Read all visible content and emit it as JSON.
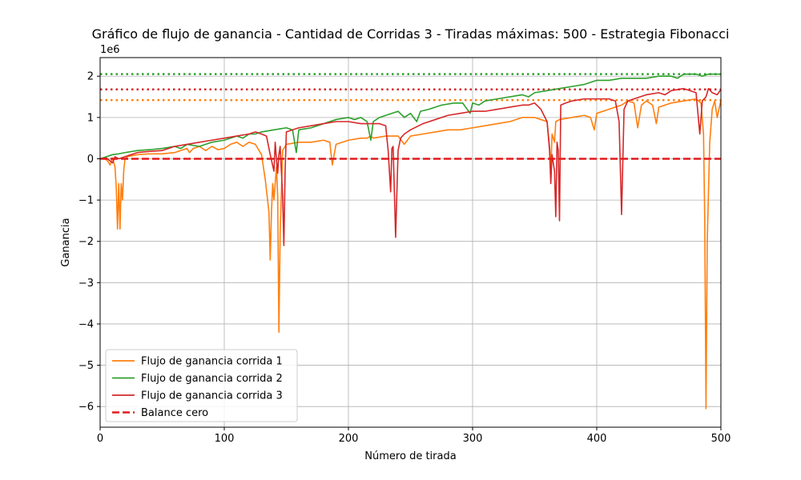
{
  "chart_data": {
    "type": "line",
    "title": "Gráfico de flujo de ganancia - Cantidad de Corridas 3 - Tiradas máximas: 500 - Estrategia Fibonacci",
    "xlabel": "Número de tirada",
    "ylabel": "Ganancia",
    "y_multiplier_label": "1e6",
    "xlim": [
      0,
      500
    ],
    "ylim": [
      -6.5,
      2.45
    ],
    "xticks": [
      0,
      100,
      200,
      300,
      400,
      500
    ],
    "xtick_labels": [
      "0",
      "100",
      "200",
      "300",
      "400",
      "500"
    ],
    "yticks": [
      -6,
      -5,
      -4,
      -3,
      -2,
      -1,
      0,
      1,
      2
    ],
    "ytick_labels": [
      "−6",
      "−5",
      "−4",
      "−3",
      "−2",
      "−1",
      "0",
      "1",
      "2"
    ],
    "grid": true,
    "legend_position": "lower-left",
    "series": [
      {
        "name": "Flujo de ganancia corrida 1",
        "color": "#ff7f0e",
        "points": [
          [
            0,
            0
          ],
          [
            3,
            0.02
          ],
          [
            6,
            -0.05
          ],
          [
            8,
            -0.15
          ],
          [
            10,
            0.02
          ],
          [
            12,
            -0.2
          ],
          [
            13,
            -0.7
          ],
          [
            14,
            -1.7
          ],
          [
            15,
            -0.6
          ],
          [
            16,
            -1.7
          ],
          [
            17,
            -0.6
          ],
          [
            18,
            -1.0
          ],
          [
            19,
            -0.3
          ],
          [
            20,
            0.0
          ],
          [
            22,
            0.05
          ],
          [
            30,
            0.1
          ],
          [
            40,
            0.12
          ],
          [
            50,
            0.12
          ],
          [
            60,
            0.15
          ],
          [
            65,
            0.2
          ],
          [
            70,
            0.25
          ],
          [
            72,
            0.15
          ],
          [
            75,
            0.25
          ],
          [
            80,
            0.3
          ],
          [
            85,
            0.2
          ],
          [
            90,
            0.3
          ],
          [
            95,
            0.22
          ],
          [
            100,
            0.25
          ],
          [
            105,
            0.35
          ],
          [
            110,
            0.4
          ],
          [
            115,
            0.3
          ],
          [
            120,
            0.4
          ],
          [
            125,
            0.35
          ],
          [
            130,
            0.1
          ],
          [
            133,
            -0.5
          ],
          [
            136,
            -1.3
          ],
          [
            137,
            -2.45
          ],
          [
            138,
            -1.3
          ],
          [
            139,
            -0.6
          ],
          [
            140,
            -1.0
          ],
          [
            142,
            -0.2
          ],
          [
            143,
            -0.9
          ],
          [
            144,
            -4.2
          ],
          [
            145,
            -1.8
          ],
          [
            147,
            0.2
          ],
          [
            150,
            0.35
          ],
          [
            160,
            0.4
          ],
          [
            170,
            0.4
          ],
          [
            180,
            0.45
          ],
          [
            185,
            0.4
          ],
          [
            187,
            -0.15
          ],
          [
            190,
            0.35
          ],
          [
            200,
            0.45
          ],
          [
            210,
            0.5
          ],
          [
            215,
            0.5
          ],
          [
            218,
            0.55
          ],
          [
            220,
            0.5
          ],
          [
            230,
            0.55
          ],
          [
            240,
            0.55
          ],
          [
            245,
            0.35
          ],
          [
            250,
            0.55
          ],
          [
            260,
            0.6
          ],
          [
            270,
            0.65
          ],
          [
            280,
            0.7
          ],
          [
            290,
            0.7
          ],
          [
            300,
            0.75
          ],
          [
            310,
            0.8
          ],
          [
            320,
            0.85
          ],
          [
            330,
            0.9
          ],
          [
            340,
            1.0
          ],
          [
            350,
            1.0
          ],
          [
            355,
            0.95
          ],
          [
            360,
            0.9
          ],
          [
            362,
            0.3
          ],
          [
            363,
            -0.3
          ],
          [
            364,
            0.6
          ],
          [
            366,
            0.4
          ],
          [
            367,
            0.9
          ],
          [
            370,
            0.95
          ],
          [
            380,
            1.0
          ],
          [
            390,
            1.05
          ],
          [
            395,
            1.0
          ],
          [
            398,
            0.7
          ],
          [
            400,
            1.1
          ],
          [
            410,
            1.2
          ],
          [
            420,
            1.3
          ],
          [
            425,
            1.4
          ],
          [
            430,
            1.35
          ],
          [
            433,
            0.75
          ],
          [
            436,
            1.3
          ],
          [
            440,
            1.4
          ],
          [
            445,
            1.3
          ],
          [
            448,
            0.85
          ],
          [
            450,
            1.25
          ],
          [
            460,
            1.35
          ],
          [
            470,
            1.4
          ],
          [
            480,
            1.45
          ],
          [
            484,
            1.35
          ],
          [
            486,
            0.6
          ],
          [
            487,
            -1.5
          ],
          [
            488,
            -6.05
          ],
          [
            489,
            -2.0
          ],
          [
            491,
            0.4
          ],
          [
            493,
            1.2
          ],
          [
            495,
            1.4
          ],
          [
            497,
            1.0
          ],
          [
            500,
            1.42
          ]
        ]
      },
      {
        "name": "Flujo de ganancia corrida 2",
        "color": "#2ca02c",
        "points": [
          [
            0,
            0
          ],
          [
            5,
            0.05
          ],
          [
            10,
            0.1
          ],
          [
            15,
            0.12
          ],
          [
            20,
            0.15
          ],
          [
            30,
            0.2
          ],
          [
            40,
            0.22
          ],
          [
            50,
            0.25
          ],
          [
            60,
            0.3
          ],
          [
            65,
            0.25
          ],
          [
            70,
            0.35
          ],
          [
            80,
            0.3
          ],
          [
            85,
            0.35
          ],
          [
            90,
            0.4
          ],
          [
            100,
            0.45
          ],
          [
            110,
            0.55
          ],
          [
            115,
            0.5
          ],
          [
            120,
            0.6
          ],
          [
            125,
            0.6
          ],
          [
            130,
            0.65
          ],
          [
            140,
            0.7
          ],
          [
            150,
            0.75
          ],
          [
            155,
            0.7
          ],
          [
            158,
            0.15
          ],
          [
            160,
            0.7
          ],
          [
            170,
            0.75
          ],
          [
            180,
            0.85
          ],
          [
            190,
            0.95
          ],
          [
            200,
            1.0
          ],
          [
            205,
            0.95
          ],
          [
            210,
            1.0
          ],
          [
            215,
            0.9
          ],
          [
            218,
            0.45
          ],
          [
            220,
            0.9
          ],
          [
            225,
            1.0
          ],
          [
            230,
            1.05
          ],
          [
            240,
            1.15
          ],
          [
            245,
            1.0
          ],
          [
            250,
            1.1
          ],
          [
            255,
            0.9
          ],
          [
            258,
            1.15
          ],
          [
            265,
            1.2
          ],
          [
            275,
            1.3
          ],
          [
            285,
            1.35
          ],
          [
            292,
            1.35
          ],
          [
            298,
            1.1
          ],
          [
            300,
            1.35
          ],
          [
            305,
            1.3
          ],
          [
            310,
            1.4
          ],
          [
            320,
            1.45
          ],
          [
            330,
            1.5
          ],
          [
            340,
            1.55
          ],
          [
            345,
            1.5
          ],
          [
            350,
            1.6
          ],
          [
            360,
            1.65
          ],
          [
            370,
            1.7
          ],
          [
            380,
            1.75
          ],
          [
            390,
            1.8
          ],
          [
            400,
            1.9
          ],
          [
            410,
            1.9
          ],
          [
            420,
            1.95
          ],
          [
            430,
            1.95
          ],
          [
            440,
            1.95
          ],
          [
            450,
            2.0
          ],
          [
            460,
            2.0
          ],
          [
            465,
            1.95
          ],
          [
            470,
            2.05
          ],
          [
            480,
            2.05
          ],
          [
            485,
            2.0
          ],
          [
            490,
            2.05
          ],
          [
            500,
            2.05
          ]
        ]
      },
      {
        "name": "Flujo de ganancia corrida 3",
        "color": "#d62728",
        "points": [
          [
            0,
            0
          ],
          [
            5,
            0.02
          ],
          [
            8,
            -0.05
          ],
          [
            10,
            -0.1
          ],
          [
            12,
            0.05
          ],
          [
            15,
            0.0
          ],
          [
            20,
            0.05
          ],
          [
            25,
            0.1
          ],
          [
            30,
            0.15
          ],
          [
            40,
            0.18
          ],
          [
            50,
            0.2
          ],
          [
            55,
            0.25
          ],
          [
            60,
            0.3
          ],
          [
            70,
            0.35
          ],
          [
            80,
            0.4
          ],
          [
            90,
            0.45
          ],
          [
            100,
            0.5
          ],
          [
            110,
            0.55
          ],
          [
            120,
            0.6
          ],
          [
            125,
            0.65
          ],
          [
            130,
            0.6
          ],
          [
            134,
            0.55
          ],
          [
            137,
            0.1
          ],
          [
            140,
            -0.3
          ],
          [
            141,
            0.4
          ],
          [
            142,
            0.0
          ],
          [
            143,
            -0.35
          ],
          [
            144,
            0.1
          ],
          [
            145,
            0.3
          ],
          [
            147,
            -0.9
          ],
          [
            148,
            -2.1
          ],
          [
            149,
            -0.3
          ],
          [
            150,
            0.65
          ],
          [
            160,
            0.75
          ],
          [
            170,
            0.8
          ],
          [
            180,
            0.85
          ],
          [
            190,
            0.9
          ],
          [
            200,
            0.9
          ],
          [
            210,
            0.85
          ],
          [
            220,
            0.85
          ],
          [
            225,
            0.85
          ],
          [
            230,
            0.8
          ],
          [
            232,
            0.2
          ],
          [
            234,
            -0.8
          ],
          [
            235,
            0.25
          ],
          [
            236,
            0.3
          ],
          [
            238,
            -1.9
          ],
          [
            240,
            0.2
          ],
          [
            242,
            0.5
          ],
          [
            245,
            0.6
          ],
          [
            250,
            0.7
          ],
          [
            260,
            0.85
          ],
          [
            270,
            0.95
          ],
          [
            280,
            1.05
          ],
          [
            290,
            1.1
          ],
          [
            300,
            1.15
          ],
          [
            310,
            1.15
          ],
          [
            320,
            1.2
          ],
          [
            330,
            1.25
          ],
          [
            340,
            1.3
          ],
          [
            345,
            1.3
          ],
          [
            350,
            1.35
          ],
          [
            355,
            1.2
          ],
          [
            360,
            0.9
          ],
          [
            362,
            0.2
          ],
          [
            363,
            -0.6
          ],
          [
            364,
            0.1
          ],
          [
            366,
            -0.3
          ],
          [
            367,
            -1.4
          ],
          [
            368,
            0.4
          ],
          [
            369,
            0.2
          ],
          [
            370,
            -1.5
          ],
          [
            371,
            1.3
          ],
          [
            375,
            1.35
          ],
          [
            380,
            1.4
          ],
          [
            390,
            1.45
          ],
          [
            400,
            1.45
          ],
          [
            410,
            1.45
          ],
          [
            415,
            1.4
          ],
          [
            418,
            0.9
          ],
          [
            420,
            -1.35
          ],
          [
            422,
            1.2
          ],
          [
            425,
            1.4
          ],
          [
            430,
            1.45
          ],
          [
            435,
            1.5
          ],
          [
            440,
            1.55
          ],
          [
            450,
            1.6
          ],
          [
            455,
            1.55
          ],
          [
            460,
            1.65
          ],
          [
            470,
            1.7
          ],
          [
            475,
            1.65
          ],
          [
            480,
            1.6
          ],
          [
            483,
            0.6
          ],
          [
            485,
            1.4
          ],
          [
            488,
            1.5
          ],
          [
            490,
            1.7
          ],
          [
            493,
            1.6
          ],
          [
            497,
            1.55
          ],
          [
            500,
            1.68
          ]
        ]
      },
      {
        "name": "Balance cero",
        "color": "#e31a1c",
        "style": "dashed",
        "points": [
          [
            0,
            0
          ],
          [
            500,
            0
          ]
        ]
      }
    ],
    "reference_lines": [
      {
        "color": "#2ca02c",
        "style": "dotted",
        "y": 2.05
      },
      {
        "color": "#d62728",
        "style": "dotted",
        "y": 1.68
      },
      {
        "color": "#ff7f0e",
        "style": "dotted",
        "y": 1.42
      }
    ]
  }
}
